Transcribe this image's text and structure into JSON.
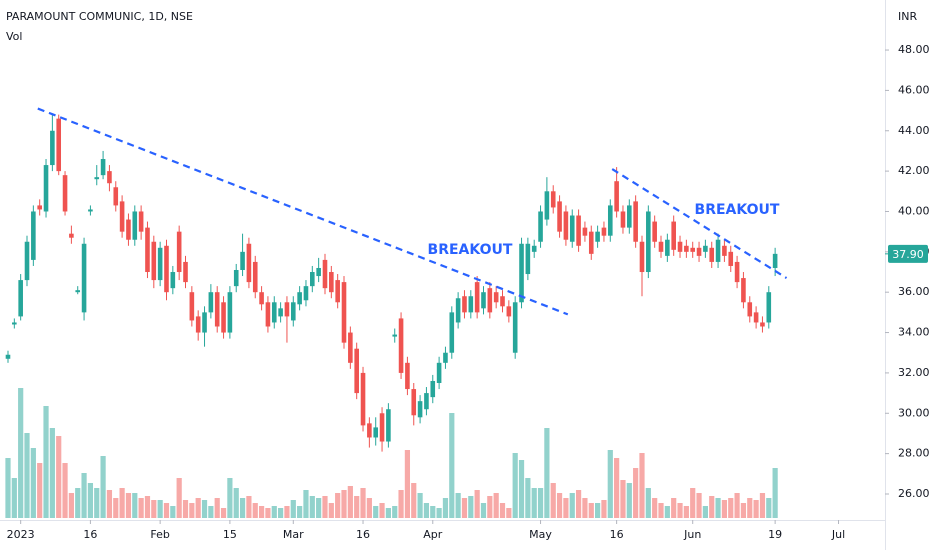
{
  "chart_data": {
    "type": "candlestick",
    "title": "PARAMOUNT COMMUNIC, 1D, NSE",
    "subtitle": "Vol",
    "y_axis_label": "INR",
    "up_color": "#26a69a",
    "down_color": "#ef5350",
    "trendline_color": "#2962ff",
    "open": [
      32.7,
      34.4,
      34.8,
      36.6,
      37.6,
      40.3,
      40.0,
      42.3,
      44.6,
      41.8,
      38.9,
      36.0,
      35.0,
      40.0,
      41.6,
      41.8,
      42.0,
      41.2,
      40.5,
      39.6,
      38.6,
      40.0,
      39.2,
      38.5,
      36.6,
      38.3,
      36.2,
      39.0,
      37.5,
      36.0,
      34.8,
      34.0,
      35.0,
      36.0,
      35.5,
      34.0,
      36.3,
      37.1,
      38.4,
      37.5,
      36.0,
      35.5,
      34.5,
      34.8,
      35.5,
      34.6,
      35.4,
      35.6,
      36.3,
      36.8,
      37.6,
      37.0,
      36.6,
      36.5,
      34.0,
      33.2,
      32.0,
      29.5,
      28.8,
      30.0,
      28.6,
      33.8,
      34.7,
      32.5,
      31.2,
      29.8,
      30.2,
      30.8,
      31.5,
      32.5,
      33.0,
      34.5,
      35.8,
      35.0,
      36.5,
      35.2,
      36.2,
      36.0,
      35.8,
      35.3,
      33.0,
      35.5,
      36.9,
      38.0,
      38.5,
      39.6,
      41.0,
      40.5,
      40.0,
      38.5,
      39.8,
      39.2,
      39.0,
      38.5,
      39.2,
      38.8,
      41.5,
      40.0,
      39.2,
      40.5,
      38.5,
      37.0,
      39.5,
      38.5,
      37.8,
      39.5,
      38.5,
      38.3,
      38.2,
      38.2,
      38.0,
      38.2,
      37.5,
      38.3,
      38.0,
      37.5,
      36.7,
      35.5,
      35.0,
      34.5,
      34.5,
      37.2
    ],
    "high": [
      33.1,
      34.7,
      36.9,
      38.8,
      40.3,
      40.6,
      42.6,
      44.8,
      44.8,
      42.0,
      39.3,
      36.3,
      38.7,
      40.3,
      42.3,
      43.0,
      42.3,
      41.5,
      40.8,
      39.9,
      40.3,
      40.3,
      39.5,
      38.8,
      38.5,
      38.6,
      37.3,
      39.3,
      37.8,
      36.3,
      35.1,
      35.3,
      36.4,
      36.3,
      35.8,
      36.3,
      37.4,
      38.9,
      38.7,
      37.8,
      36.3,
      35.8,
      35.8,
      35.5,
      35.8,
      35.8,
      36.3,
      36.6,
      37.3,
      37.7,
      37.9,
      37.3,
      36.9,
      36.8,
      34.3,
      33.5,
      32.3,
      29.8,
      29.8,
      30.3,
      30.5,
      34.2,
      35.0,
      32.8,
      31.5,
      30.9,
      31.3,
      31.9,
      32.8,
      33.3,
      35.3,
      36.0,
      36.1,
      36.1,
      36.8,
      36.3,
      36.5,
      36.3,
      36.1,
      35.6,
      35.8,
      38.7,
      38.7,
      38.6,
      40.3,
      41.7,
      41.3,
      40.8,
      40.3,
      40.1,
      40.1,
      39.5,
      39.3,
      39.3,
      39.5,
      40.6,
      42.2,
      40.3,
      40.6,
      40.8,
      38.8,
      40.3,
      39.8,
      38.8,
      38.9,
      39.8,
      38.8,
      38.6,
      38.5,
      38.5,
      38.6,
      38.5,
      38.9,
      38.6,
      38.3,
      37.8,
      37.0,
      35.8,
      35.3,
      34.8,
      36.3,
      38.2
    ],
    "low": [
      32.5,
      34.2,
      34.6,
      36.3,
      37.3,
      39.8,
      39.7,
      42.0,
      41.8,
      39.8,
      38.4,
      35.9,
      34.6,
      39.8,
      41.3,
      41.6,
      41.0,
      40.0,
      38.7,
      38.3,
      38.3,
      38.6,
      36.7,
      36.2,
      36.3,
      35.6,
      35.9,
      36.6,
      36.2,
      34.3,
      33.6,
      33.3,
      34.7,
      34.0,
      33.7,
      33.7,
      36.0,
      36.8,
      36.2,
      35.7,
      35.1,
      34.0,
      34.2,
      34.5,
      33.5,
      34.3,
      35.1,
      35.3,
      36.0,
      36.5,
      35.9,
      35.7,
      35.2,
      33.2,
      32.2,
      30.7,
      29.1,
      28.3,
      28.4,
      28.1,
      28.3,
      33.5,
      31.7,
      30.9,
      29.4,
      29.5,
      29.9,
      30.5,
      31.2,
      32.2,
      32.7,
      34.2,
      34.7,
      34.7,
      34.7,
      34.9,
      34.7,
      35.2,
      35.0,
      34.5,
      32.7,
      35.2,
      36.6,
      37.7,
      38.2,
      39.3,
      39.9,
      38.7,
      38.3,
      38.2,
      38.0,
      38.5,
      37.6,
      38.2,
      38.5,
      38.5,
      39.7,
      38.9,
      38.9,
      38.2,
      35.8,
      36.7,
      38.2,
      37.7,
      37.5,
      37.8,
      37.7,
      37.7,
      37.7,
      37.5,
      37.7,
      37.2,
      37.2,
      37.5,
      37.0,
      36.2,
      35.2,
      34.5,
      34.2,
      34.0,
      34.2,
      36.8
    ],
    "close": [
      32.9,
      34.5,
      36.6,
      38.5,
      40.0,
      40.1,
      42.3,
      44.0,
      42.0,
      40.0,
      38.7,
      36.1,
      38.4,
      40.1,
      41.7,
      42.6,
      41.4,
      40.3,
      39.0,
      38.6,
      40.0,
      39.0,
      37.0,
      36.6,
      38.2,
      36.0,
      37.0,
      37.0,
      36.5,
      34.6,
      34.0,
      35.0,
      36.0,
      34.3,
      34.0,
      36.0,
      37.1,
      38.0,
      36.5,
      36.0,
      35.4,
      34.3,
      35.5,
      35.2,
      34.8,
      35.5,
      36.0,
      36.3,
      37.0,
      37.2,
      36.2,
      36.0,
      35.5,
      33.5,
      32.5,
      31.0,
      29.4,
      28.8,
      29.3,
      28.6,
      30.2,
      33.9,
      32.0,
      31.2,
      29.9,
      30.6,
      31.0,
      31.6,
      32.5,
      33.0,
      35.0,
      35.7,
      35.0,
      35.8,
      35.0,
      36.0,
      35.0,
      35.5,
      35.3,
      34.8,
      35.5,
      38.4,
      38.4,
      38.3,
      40.0,
      41.0,
      40.2,
      39.0,
      38.6,
      39.8,
      38.3,
      38.8,
      37.9,
      39.0,
      38.8,
      40.3,
      40.0,
      39.2,
      40.3,
      38.5,
      37.0,
      40.0,
      38.5,
      38.0,
      38.6,
      38.1,
      38.0,
      38.0,
      38.0,
      37.8,
      38.3,
      37.5,
      38.6,
      37.8,
      37.3,
      36.5,
      35.5,
      34.8,
      34.5,
      34.3,
      36.0,
      37.9
    ],
    "volume": [
      60,
      40,
      130,
      85,
      70,
      55,
      112,
      90,
      82,
      55,
      25,
      30,
      45,
      35,
      30,
      62,
      28,
      20,
      30,
      25,
      25,
      20,
      22,
      18,
      18,
      15,
      12,
      40,
      18,
      15,
      20,
      18,
      12,
      20,
      10,
      40,
      30,
      20,
      22,
      15,
      12,
      10,
      12,
      10,
      12,
      18,
      12,
      28,
      22,
      20,
      22,
      15,
      25,
      28,
      32,
      22,
      30,
      20,
      12,
      15,
      10,
      12,
      28,
      68,
      35,
      25,
      15,
      12,
      10,
      20,
      105,
      25,
      20,
      22,
      28,
      15,
      22,
      25,
      15,
      10,
      65,
      58,
      40,
      30,
      30,
      90,
      35,
      25,
      20,
      25,
      28,
      20,
      15,
      15,
      18,
      68,
      60,
      38,
      35,
      50,
      65,
      30,
      20,
      15,
      12,
      20,
      15,
      12,
      30,
      25,
      12,
      22,
      20,
      18,
      20,
      25,
      15,
      20,
      18,
      25,
      20,
      50
    ],
    "volume_ylim": [
      0,
      130
    ],
    "last_price_label": "37.90",
    "xlim": [
      -1.26,
      138.33
    ],
    "xticks": [
      {
        "value": 2,
        "label": "2023"
      },
      {
        "value": 13,
        "label": "16"
      },
      {
        "value": 24,
        "label": "Feb"
      },
      {
        "value": 35,
        "label": "15"
      },
      {
        "value": 45,
        "label": "Mar"
      },
      {
        "value": 56,
        "label": "16"
      },
      {
        "value": 67,
        "label": "Apr"
      },
      {
        "value": 84,
        "label": "May"
      },
      {
        "value": 96,
        "label": "16"
      },
      {
        "value": 108,
        "label": "Jun"
      },
      {
        "value": 121,
        "label": "19"
      },
      {
        "value": 131,
        "label": "Jul"
      }
    ],
    "ylim": [
      24.81,
      50.48
    ],
    "yticks": [
      {
        "value": 26,
        "label": "26.00"
      },
      {
        "value": 28,
        "label": "28.00"
      },
      {
        "value": 30,
        "label": "30.00"
      },
      {
        "value": 32,
        "label": "32.00"
      },
      {
        "value": 34,
        "label": "34.00"
      },
      {
        "value": 36,
        "label": "36.00"
      },
      {
        "value": 38,
        "label": "38.00"
      },
      {
        "value": 40,
        "label": "40.00"
      },
      {
        "value": 42,
        "label": "42.00"
      },
      {
        "value": 44,
        "label": "44.00"
      },
      {
        "value": 46,
        "label": "46.00"
      },
      {
        "value": 48,
        "label": "48.00"
      }
    ],
    "trendlines": [
      {
        "x": [
          4.7,
          88.3
        ],
        "y": [
          45.1,
          34.9
        ]
      },
      {
        "x": [
          95.3,
          122.8
        ],
        "y": [
          42.1,
          36.7
        ]
      }
    ],
    "annotations": [
      {
        "text": "BREAKOUT"
      },
      {
        "text": "BREAKOUT"
      }
    ]
  }
}
